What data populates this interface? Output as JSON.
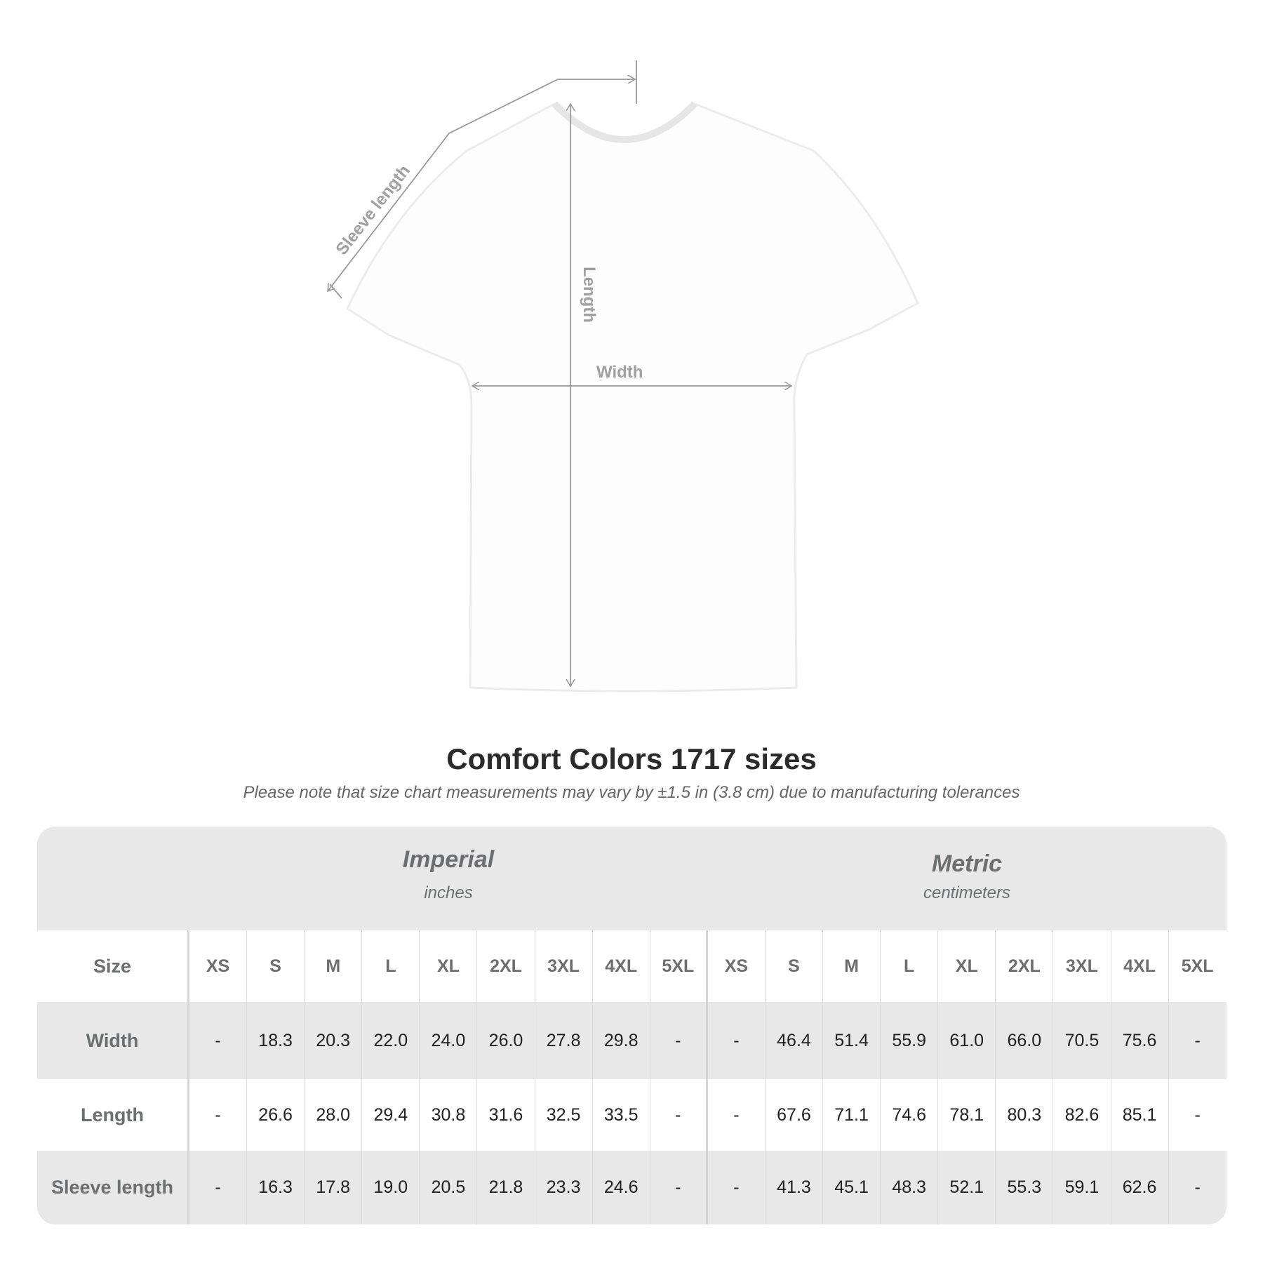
{
  "diagram": {
    "labels": {
      "sleeve": "Sleeve length",
      "length": "Length",
      "width": "Width"
    }
  },
  "title": "Comfort Colors 1717 sizes",
  "note": "Please note that size chart measurements may vary by ±1.5 in (3.8 cm) due to manufacturing tolerances",
  "table": {
    "imperial": {
      "name": "Imperial",
      "unit": "inches"
    },
    "metric": {
      "name": "Metric",
      "unit": "centimeters"
    },
    "size_label": "Size",
    "sizes": [
      "XS",
      "S",
      "M",
      "L",
      "XL",
      "2XL",
      "3XL",
      "4XL",
      "5XL"
    ],
    "rows": [
      {
        "label": "Width",
        "imperial": [
          "-",
          "18.3",
          "20.3",
          "22.0",
          "24.0",
          "26.0",
          "27.8",
          "29.8",
          "-"
        ],
        "metric": [
          "-",
          "46.4",
          "51.4",
          "55.9",
          "61.0",
          "66.0",
          "70.5",
          "75.6",
          "-"
        ]
      },
      {
        "label": "Length",
        "imperial": [
          "-",
          "26.6",
          "28.0",
          "29.4",
          "30.8",
          "31.6",
          "32.5",
          "33.5",
          "-"
        ],
        "metric": [
          "-",
          "67.6",
          "71.1",
          "74.6",
          "78.1",
          "80.3",
          "82.6",
          "85.1",
          "-"
        ]
      },
      {
        "label": "Sleeve length",
        "imperial": [
          "-",
          "16.3",
          "17.8",
          "19.0",
          "20.5",
          "21.8",
          "23.3",
          "24.6",
          "-"
        ],
        "metric": [
          "-",
          "41.3",
          "45.1",
          "48.3",
          "52.1",
          "55.3",
          "59.1",
          "62.6",
          "-"
        ]
      }
    ]
  },
  "colors": {
    "band": "#e8e8e8",
    "header_text": "#6b6f70",
    "guide_lines": "#9a9a9a"
  }
}
